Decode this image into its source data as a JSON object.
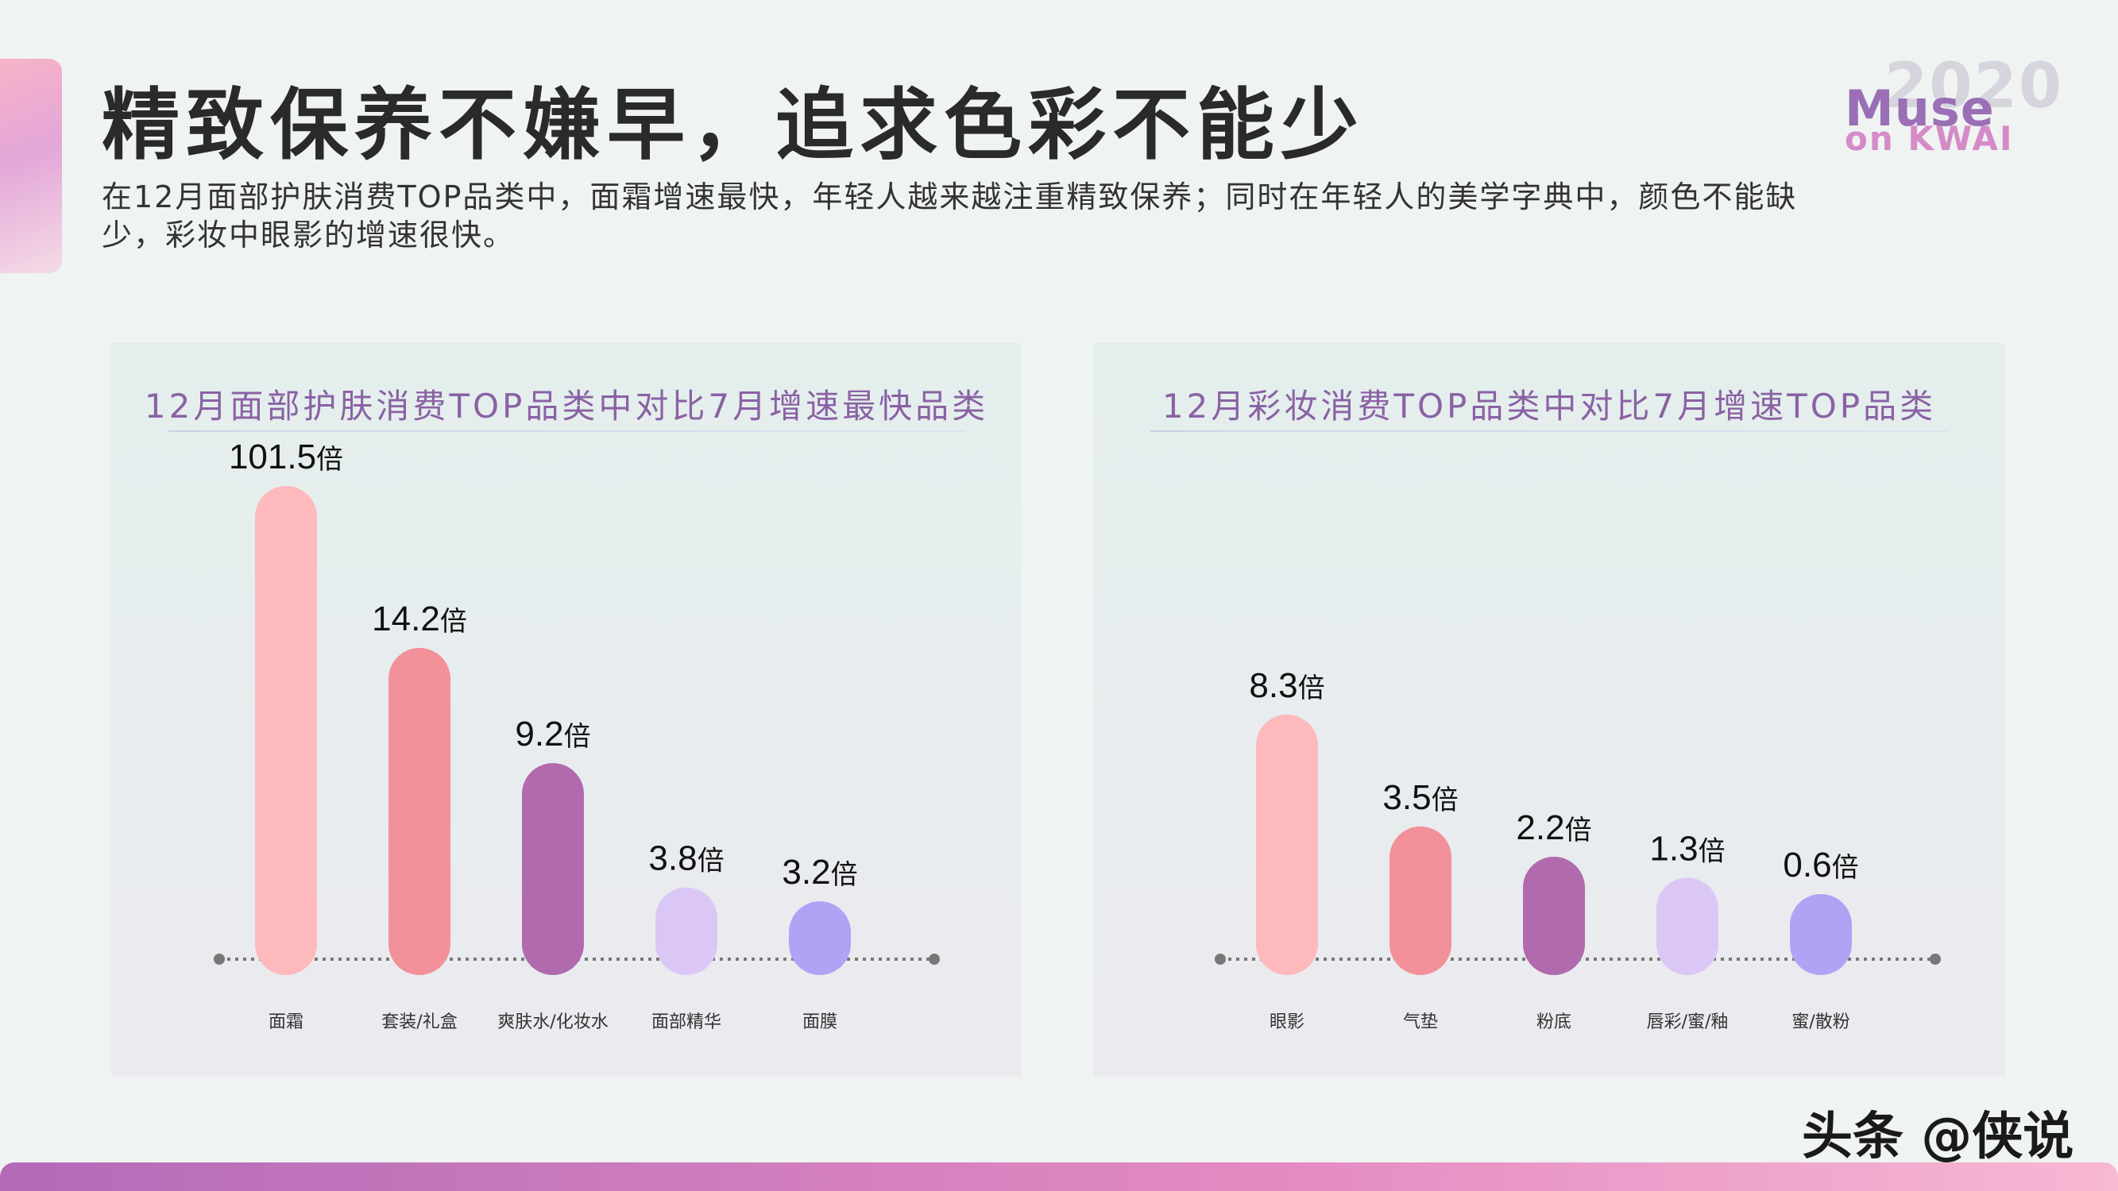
{
  "header": {
    "title": "精致保养不嫌早，追求色彩不能少",
    "subtitle": "在12月面部护肤消费TOP品类中，面霜增速最快，年轻人越来越注重精致保养；同时在年轻人的美学字典中，颜色不能缺少，彩妆中眼影的增速很快。"
  },
  "logo": {
    "year": "2020",
    "line1": "Muse",
    "line2": "on KWAI"
  },
  "watermark": "头条 @侠说",
  "chart_data": [
    {
      "type": "bar",
      "title": "12月面部护肤消费TOP品类中对比7月增速最快品类",
      "categories": [
        "面霜",
        "套装/礼盒",
        "爽肤水/化妆水",
        "面部精华",
        "面膜"
      ],
      "values": [
        101.5,
        14.2,
        9.2,
        3.8,
        3.2
      ],
      "value_suffix": "倍",
      "colors": [
        "#fdb9bc",
        "#f29199",
        "#b06aad",
        "#dbc7f6",
        "#afa3f5"
      ],
      "grid": false
    },
    {
      "type": "bar",
      "title": "12月彩妆消费TOP品类中对比7月增速TOP品类",
      "categories": [
        "眼影",
        "气垫",
        "粉底",
        "唇彩/蜜/釉",
        "蜜/散粉"
      ],
      "values": [
        8.3,
        3.5,
        2.2,
        1.3,
        0.6
      ],
      "value_suffix": "倍",
      "colors": [
        "#fdb9bc",
        "#f29199",
        "#b06aad",
        "#dbc7f6",
        "#afa3f5"
      ],
      "grid": false
    }
  ]
}
